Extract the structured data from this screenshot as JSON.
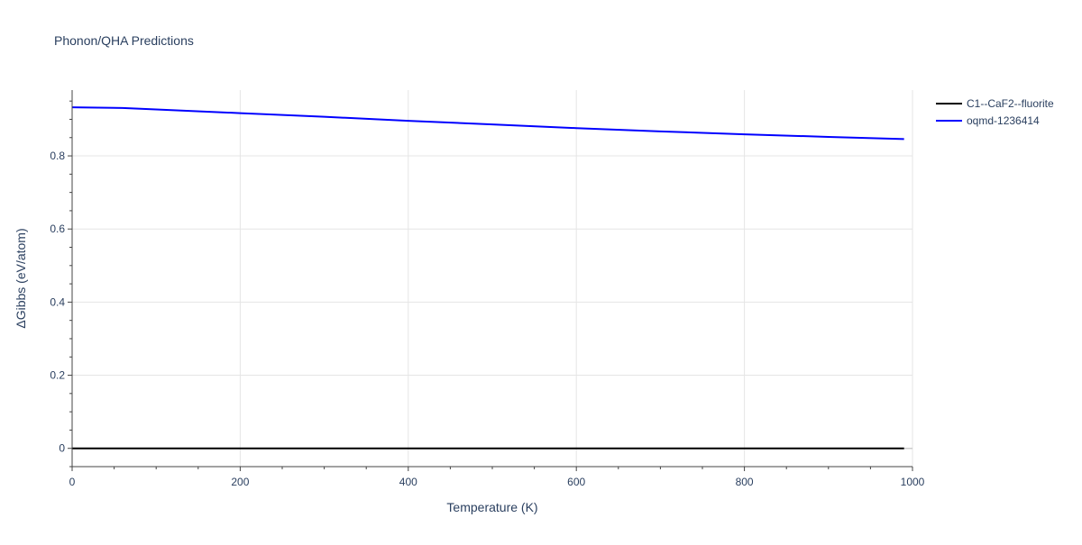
{
  "chart_data": {
    "type": "line",
    "title": "Phonon/QHA Predictions",
    "xlabel": "Temperature (K)",
    "ylabel": "ΔGibbs (eV/atom)",
    "xlim": [
      0,
      1000
    ],
    "ylim": [
      -0.05,
      0.98
    ],
    "xticks": [
      0,
      200,
      400,
      600,
      800,
      1000
    ],
    "xtick_labels": [
      "0",
      "200",
      "400",
      "600",
      "800",
      "1000"
    ],
    "yticks": [
      0,
      0.2,
      0.4,
      0.6,
      0.8
    ],
    "ytick_labels": [
      "0",
      "0.2",
      "0.4",
      "0.6",
      "0.8"
    ],
    "grid": true,
    "legend_position": "top-right",
    "series": [
      {
        "name": "C1--CaF2--fluorite",
        "color": "#000000",
        "x": [
          0,
          100,
          200,
          300,
          400,
          500,
          600,
          700,
          800,
          900,
          990
        ],
        "y": [
          0,
          0,
          0,
          0,
          0,
          0,
          0,
          0,
          0,
          0,
          0
        ]
      },
      {
        "name": "oqmd-1236414",
        "color": "#0000ff",
        "x": [
          0,
          60,
          100,
          200,
          300,
          400,
          500,
          600,
          700,
          800,
          900,
          990
        ],
        "y": [
          0.933,
          0.931,
          0.927,
          0.917,
          0.907,
          0.896,
          0.886,
          0.876,
          0.867,
          0.859,
          0.852,
          0.846
        ]
      }
    ]
  }
}
